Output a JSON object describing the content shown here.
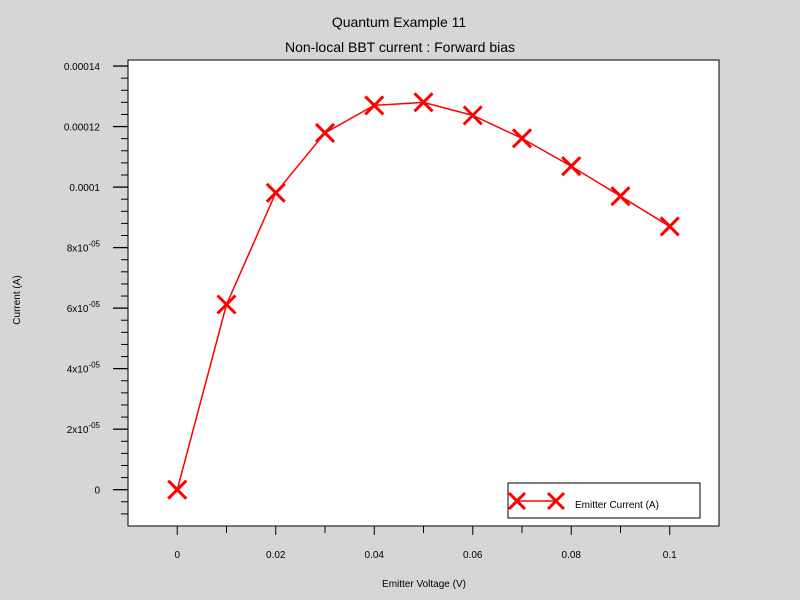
{
  "chart_data": {
    "type": "line",
    "title": "Quantum Example 11",
    "subtitle": "Non-local BBT current : Forward bias",
    "xlabel": "Emitter Voltage (V)",
    "ylabel": "Current (A)",
    "xlim": [
      -0.01,
      0.11
    ],
    "ylim": [
      -1.2e-05,
      0.000142
    ],
    "x_ticks": [
      {
        "value": 0,
        "label": "0"
      },
      {
        "value": 0.02,
        "label": "0.02"
      },
      {
        "value": 0.04,
        "label": "0.04"
      },
      {
        "value": 0.06,
        "label": "0.06"
      },
      {
        "value": 0.08,
        "label": "0.08"
      },
      {
        "value": 0.1,
        "label": "0.1"
      }
    ],
    "y_ticks": [
      {
        "value": 0,
        "mantissa": "0",
        "exponent": ""
      },
      {
        "value": 2e-05,
        "mantissa": "2x10",
        "exponent": "-05"
      },
      {
        "value": 4e-05,
        "mantissa": "4x10",
        "exponent": "-05"
      },
      {
        "value": 6e-05,
        "mantissa": "6x10",
        "exponent": "-05"
      },
      {
        "value": 8e-05,
        "mantissa": "8x10",
        "exponent": "-05"
      },
      {
        "value": 0.0001,
        "mantissa": "0.0001",
        "exponent": ""
      },
      {
        "value": 0.00012,
        "mantissa": "0.00012",
        "exponent": ""
      },
      {
        "value": 0.00014,
        "mantissa": "0.00014",
        "exponent": ""
      }
    ],
    "series": [
      {
        "name": "Emitter Current (A)",
        "color": "#ff0000",
        "marker": "x",
        "x": [
          0,
          0.01,
          0.02,
          0.03,
          0.04,
          0.05,
          0.06,
          0.07,
          0.08,
          0.09,
          0.1
        ],
        "y": [
          0,
          6.12e-05,
          9.81e-05,
          0.0001179,
          0.000127,
          0.000128,
          0.0001237,
          0.0001161,
          0.0001069,
          9.7e-05,
          8.7e-05
        ]
      }
    ],
    "legend_position": "bottom-right",
    "grid": false
  }
}
